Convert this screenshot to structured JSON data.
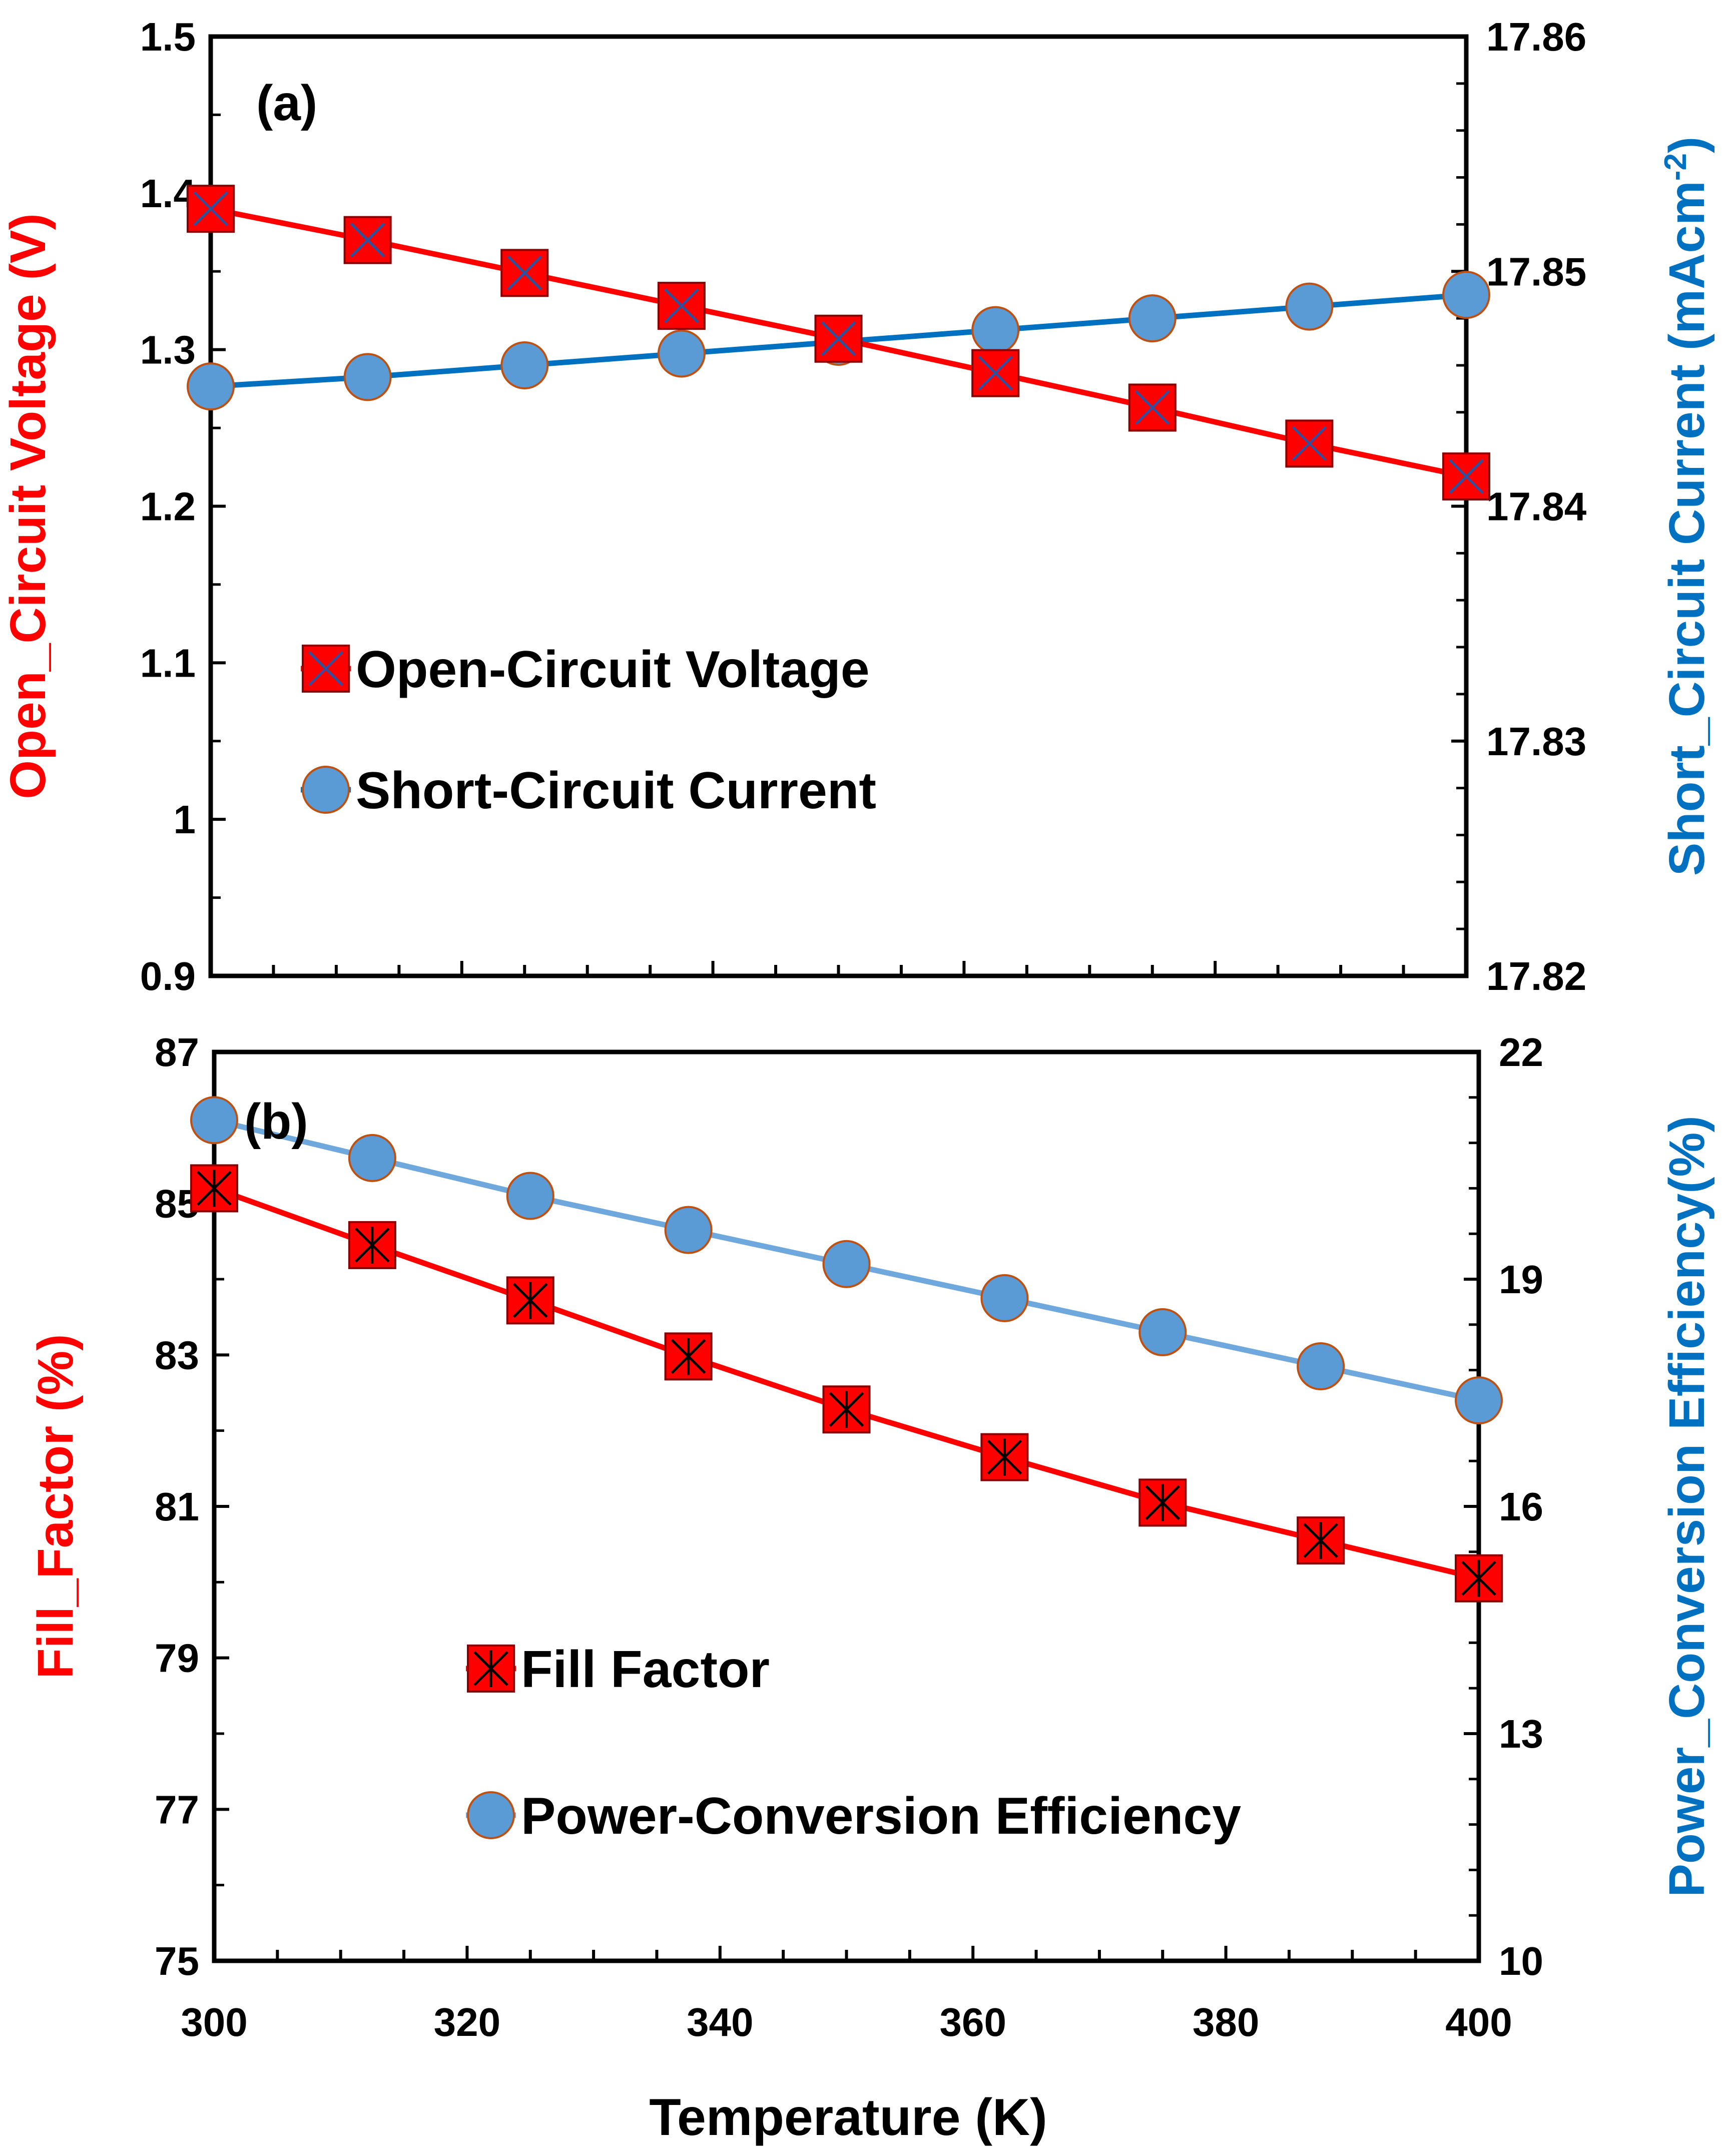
{
  "colors": {
    "red": "#ff0000",
    "blue": "#0070c0",
    "light_blue": "#5b9bd5",
    "pce_line": "#6fa8dc",
    "black": "#000000",
    "marker_edge": "#c05010"
  },
  "figure": {
    "xlabel": "Temperature (K)",
    "x_tick_labels": [
      "300",
      "320",
      "340",
      "360",
      "380",
      "400"
    ]
  },
  "chart_data": [
    {
      "id": "a",
      "type": "line",
      "panel_label": "(a)",
      "title": "",
      "x": [
        300,
        312.5,
        325,
        337.5,
        350,
        362.5,
        375,
        387.5,
        400
      ],
      "xlim": [
        300,
        400
      ],
      "xlabel": "Temperature (K)",
      "ylabel_left": "Open_Circuit Voltage (V)",
      "ylabel_right": "Short_Circuit Current (mAcm",
      "ylabel_right_sup": "-2",
      "ylabel_right_close": ")",
      "ylim_left": [
        0.9,
        1.5
      ],
      "ylim_right": [
        17.82,
        17.86
      ],
      "yticks_left": [
        "0.9",
        "1",
        "1.1",
        "1.2",
        "1.3",
        "1.4",
        "1.5"
      ],
      "yticks_right": [
        "17.82",
        "17.83",
        "17.84",
        "17.85",
        "17.86"
      ],
      "legend_position": "center-left",
      "series": [
        {
          "name": "Open-Circuit Voltage",
          "axis": "left",
          "marker": "square-x",
          "values": [
            1.39,
            1.37,
            1.349,
            1.328,
            1.307,
            1.285,
            1.263,
            1.24,
            1.219
          ]
        },
        {
          "name": "Short-Circuit Current",
          "axis": "right",
          "marker": "circle",
          "values": [
            17.8451,
            17.8455,
            17.846,
            17.8465,
            17.847,
            17.8475,
            17.848,
            17.8485,
            17.849
          ]
        }
      ]
    },
    {
      "id": "b",
      "type": "line",
      "panel_label": "(b)",
      "title": "",
      "x": [
        300,
        312.5,
        325,
        337.5,
        350,
        362.5,
        375,
        387.5,
        400
      ],
      "xlim": [
        300,
        400
      ],
      "xlabel": "Temperature (K)",
      "ylabel_left": "Fill_Factor (%)",
      "ylabel_right": "Power_Conversion Efficiency(%)",
      "ylim_left": [
        75,
        87
      ],
      "ylim_right": [
        10,
        22
      ],
      "yticks_left": [
        "75",
        "77",
        "79",
        "81",
        "83",
        "85",
        "87"
      ],
      "yticks_right": [
        "10",
        "13",
        "16",
        "19",
        "22"
      ],
      "legend_position": "bottom-center",
      "series": [
        {
          "name": "Fill Factor",
          "axis": "left",
          "marker": "square-star",
          "values": [
            85.2,
            84.45,
            83.72,
            82.98,
            82.28,
            81.65,
            81.05,
            80.55,
            80.05
          ]
        },
        {
          "name": "Power-Conversion Efficiency",
          "axis": "right",
          "marker": "circle",
          "values": [
            21.1,
            20.6,
            20.1,
            19.65,
            19.2,
            18.75,
            18.3,
            17.85,
            17.4
          ]
        }
      ]
    }
  ]
}
